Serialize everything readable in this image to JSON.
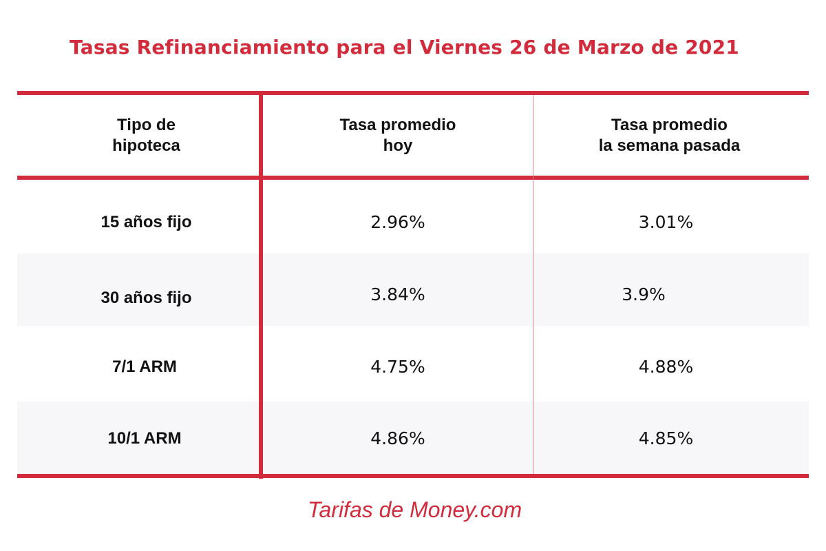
{
  "chart_data": {
    "type": "table",
    "title": "Tasas Refinanciamiento para el Viernes 26 de Marzo de 2021",
    "columns": [
      "Tipo de\nhipoteca",
      "Tasa promedio\nhoy",
      "Tasa promedio\nla semana pasada"
    ],
    "rows": [
      {
        "tipo": "15 años fijo",
        "hoy": "2.96%",
        "semana_pasada": "3.01%"
      },
      {
        "tipo": "30 años fijo",
        "hoy": "3.84%",
        "semana_pasada": "3.9%"
      },
      {
        "tipo": "7/1 ARM",
        "hoy": "4.75%",
        "semana_pasada": "4.88%"
      },
      {
        "tipo": "10/1 ARM",
        "hoy": "4.86%",
        "semana_pasada": "4.85%"
      }
    ],
    "source": "Tarifas de Money.com"
  },
  "colors": {
    "accent": "#d22c3c",
    "stripe": "#f7f7fa",
    "text": "#111111"
  }
}
